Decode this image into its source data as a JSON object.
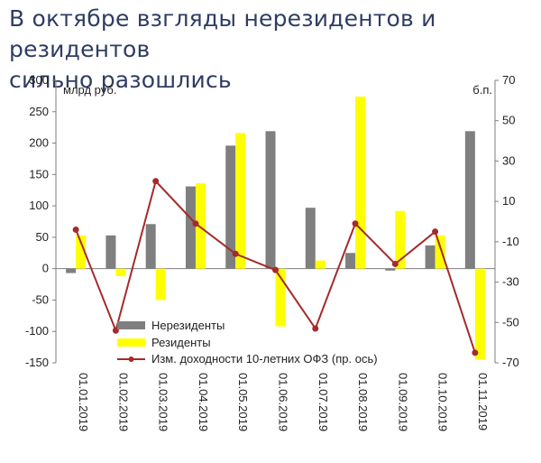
{
  "title_line1": "В октябре взгляды нерезидентов и резидентов",
  "title_line2": "сильно разошлись",
  "chart_data": {
    "type": "bar",
    "categories": [
      "01.01.2019",
      "01.02.2019",
      "01.03.2019",
      "01.04.2019",
      "01.05.2019",
      "01.06.2019",
      "01.07.2019",
      "01.08.2019",
      "01.09.2019",
      "01.10.2019",
      "01.11.2019"
    ],
    "left_unit": "млрд руб.",
    "right_unit": "б.п.",
    "ylim_left": [
      -150,
      300
    ],
    "yticks_left": [
      300,
      250,
      200,
      150,
      100,
      50,
      0,
      -50,
      -100,
      -150
    ],
    "ylim_right": [
      -70,
      70
    ],
    "yticks_right": [
      70,
      50,
      30,
      10,
      -10,
      -30,
      -50,
      -70
    ],
    "series": [
      {
        "name": "Нерезиденты",
        "kind": "bar",
        "axis": "left",
        "color": "#7f7f7f",
        "values": [
          -7,
          53,
          71,
          131,
          196,
          219,
          97,
          25,
          -3,
          37,
          219
        ]
      },
      {
        "name": "Резиденты",
        "kind": "bar",
        "axis": "left",
        "color": "#ffff00",
        "values": [
          53,
          -12,
          -50,
          136,
          216,
          -92,
          13,
          274,
          92,
          53,
          -145
        ]
      },
      {
        "name": "Изм. доходности 10-летних ОФЗ (пр. ось)",
        "kind": "line",
        "axis": "right",
        "color": "#a52a2a",
        "values": [
          -4,
          -54,
          20,
          -1,
          -16,
          -24,
          -53,
          -1,
          -21,
          -5,
          -65
        ]
      }
    ],
    "legend_position": "bottom-center",
    "grid": false
  }
}
